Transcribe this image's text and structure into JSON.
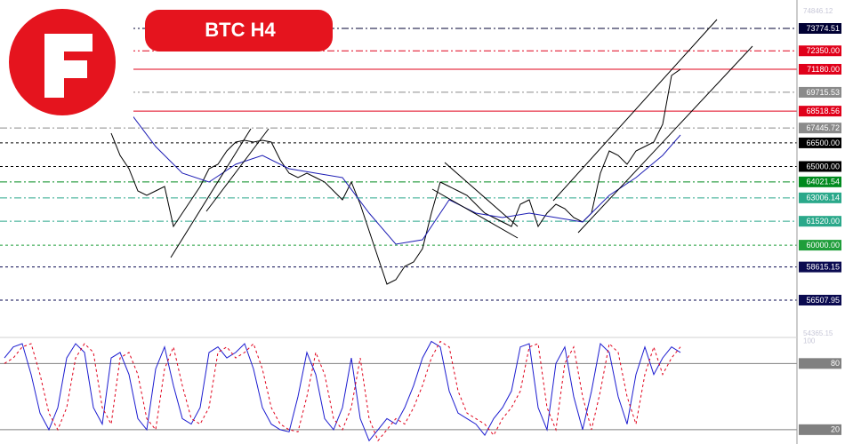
{
  "chart_data": [
    {
      "type": "line",
      "title": "BTC H4",
      "xlim": [
        -12.5,
        77.1
      ],
      "ylim": [
        54250,
        75580
      ],
      "yticks": [
        74846.12,
        54365.15
      ],
      "levels": [
        {
          "value": 73774.51,
          "color": "#000033",
          "dash": "dashdot"
        },
        {
          "value": 72350,
          "label": "72350.00",
          "color": "#e0001a",
          "dash": "dashdot"
        },
        {
          "value": 71180,
          "label": "71180.00",
          "color": "#e0001a",
          "dash": "solid"
        },
        {
          "value": 69715.53,
          "color": "#8a8a8a",
          "dash": "dashdot"
        },
        {
          "value": 68518.56,
          "color": "#e0001a",
          "dash": "solid"
        },
        {
          "value": 67445.72,
          "color": "#8a8a8a",
          "dash": "dashdot"
        },
        {
          "value": 66500,
          "label": "66500.00",
          "color": "#000000",
          "dash": "dashed"
        },
        {
          "value": 65000,
          "label": "65000.00",
          "color": "#000000",
          "dash": "dashed"
        },
        {
          "value": 64021.54,
          "color": "#008a1e",
          "dash": "dashdot"
        },
        {
          "value": 63006.14,
          "color": "#2aa88a",
          "dash": "dashdot"
        },
        {
          "value": 61520,
          "label": "61520.00",
          "color": "#2aa88a",
          "dash": "dashdot"
        },
        {
          "value": 60000,
          "label": "60000.00",
          "color": "#1f9e3a",
          "dash": "dashed"
        },
        {
          "value": 58615.15,
          "color": "#0a0a50",
          "dash": "dashed"
        },
        {
          "value": 56507.95,
          "color": "#0a0a50",
          "dash": "dashed"
        }
      ],
      "series": [
        {
          "color": "#000000",
          "x": [
            0,
            1,
            2,
            3,
            4,
            5,
            6,
            7,
            8,
            9,
            10,
            11,
            12,
            13,
            14,
            15,
            16,
            17,
            18,
            19,
            20,
            21,
            22,
            23,
            24,
            25,
            26,
            27,
            28,
            29,
            30,
            31,
            32,
            33,
            34,
            35,
            36,
            37,
            38,
            39,
            40,
            41,
            42,
            43,
            44,
            45,
            46,
            47,
            48,
            49,
            50,
            51,
            52,
            53,
            54,
            55,
            56,
            57,
            58,
            59,
            60,
            61,
            62,
            63,
            64
          ],
          "values": [
            67116,
            65706,
            64859,
            63448,
            63166,
            63448,
            63730,
            61191,
            62037,
            62884,
            63730,
            64859,
            65141,
            65988,
            66552,
            66665,
            66552,
            66665,
            66552,
            65423,
            64577,
            64295,
            64577,
            64295,
            64013,
            63448,
            62884,
            64013,
            62602,
            60909,
            59216,
            57523,
            57805,
            58652,
            58934,
            59780,
            62037,
            64013,
            63730,
            63448,
            63166,
            62602,
            62037,
            61755,
            61473,
            61191,
            62602,
            62884,
            61191,
            62037,
            62602,
            62319,
            61755,
            61473,
            62037,
            64577,
            65988,
            65706,
            65141,
            65988,
            66270,
            66552,
            67681,
            70784,
            71179
          ]
        },
        {
          "color": "#1c1cb4",
          "x": [
            2,
            5,
            8,
            11,
            14,
            17,
            20,
            23,
            26,
            29,
            32,
            35,
            38,
            41,
            44,
            47,
            50,
            53,
            56,
            59,
            62,
            64
          ],
          "values": [
            68527,
            66270,
            64577,
            64013,
            65141,
            65706,
            64859,
            64577,
            64295,
            62037,
            60062,
            60344,
            62884,
            62037,
            61755,
            62037,
            61755,
            61473,
            63166,
            64295,
            65706,
            67003
          ]
        }
      ]
    },
    {
      "type": "line",
      "xlim": [
        -12.5,
        77.1
      ],
      "ylim": [
        7,
        102
      ],
      "yticks": [
        100
      ],
      "levels": [
        {
          "value": 80,
          "color": "#808080",
          "dash": "solid"
        },
        {
          "value": 20,
          "color": "#808080",
          "dash": "solid"
        }
      ],
      "series": [
        {
          "color": "#1c1cd0",
          "dash": "solid",
          "x": [
            -12,
            -11,
            -10,
            -9,
            -8,
            -7,
            -6,
            -5,
            -4,
            -3,
            -2,
            -1,
            0,
            1,
            2,
            3,
            4,
            5,
            6,
            7,
            8,
            9,
            10,
            11,
            12,
            13,
            14,
            15,
            16,
            17,
            18,
            19,
            20,
            21,
            22,
            23,
            24,
            25,
            26,
            27,
            28,
            29,
            30,
            31,
            32,
            33,
            34,
            35,
            36,
            37,
            38,
            39,
            40,
            41,
            42,
            43,
            44,
            45,
            46,
            47,
            48,
            49,
            50,
            51,
            52,
            53,
            54,
            55,
            56,
            57,
            58,
            59,
            60,
            61,
            62,
            63,
            64
          ],
          "values": [
            85,
            95,
            98,
            70,
            35,
            20,
            40,
            85,
            98,
            90,
            40,
            25,
            85,
            90,
            70,
            30,
            20,
            75,
            95,
            60,
            30,
            25,
            40,
            90,
            95,
            85,
            90,
            98,
            75,
            40,
            25,
            20,
            18,
            50,
            90,
            70,
            30,
            20,
            40,
            85,
            30,
            10,
            20,
            30,
            25,
            40,
            60,
            85,
            100,
            95,
            55,
            35,
            30,
            25,
            15,
            30,
            40,
            55,
            95,
            98,
            40,
            20,
            80,
            95,
            50,
            20,
            55,
            98,
            90,
            50,
            25,
            70,
            95,
            70,
            85,
            95,
            90
          ]
        },
        {
          "color": "#e0001a",
          "dash": "dashed",
          "x": [
            -12,
            -11,
            -10,
            -9,
            -8,
            -7,
            -6,
            -5,
            -4,
            -3,
            -2,
            -1,
            0,
            1,
            2,
            3,
            4,
            5,
            6,
            7,
            8,
            9,
            10,
            11,
            12,
            13,
            14,
            15,
            16,
            17,
            18,
            19,
            20,
            21,
            22,
            23,
            24,
            25,
            26,
            27,
            28,
            29,
            30,
            31,
            32,
            33,
            34,
            35,
            36,
            37,
            38,
            39,
            40,
            41,
            42,
            43,
            44,
            45,
            46,
            47,
            48,
            49,
            50,
            51,
            52,
            53,
            54,
            55,
            56,
            57,
            58,
            59,
            60,
            61,
            62,
            63,
            64
          ],
          "values": [
            80,
            85,
            95,
            98,
            70,
            35,
            20,
            40,
            85,
            98,
            90,
            40,
            25,
            85,
            90,
            70,
            30,
            20,
            75,
            95,
            60,
            30,
            25,
            40,
            90,
            95,
            85,
            90,
            98,
            75,
            40,
            25,
            20,
            18,
            50,
            90,
            70,
            30,
            20,
            40,
            85,
            30,
            10,
            20,
            30,
            25,
            40,
            60,
            85,
            100,
            95,
            55,
            35,
            30,
            25,
            15,
            30,
            40,
            55,
            95,
            98,
            40,
            20,
            80,
            95,
            50,
            20,
            55,
            98,
            90,
            50,
            25,
            70,
            95,
            70,
            85,
            95
          ]
        }
      ]
    }
  ]
}
